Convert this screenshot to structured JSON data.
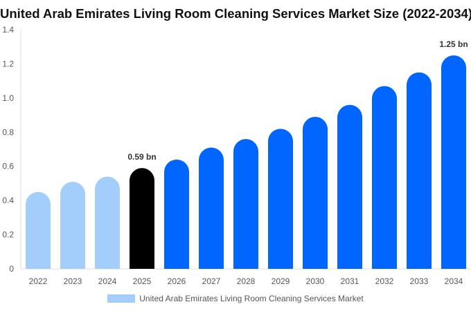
{
  "chart_data": {
    "type": "bar",
    "title": "United Arab Emirates Living Room Cleaning Services Market Size (2022-2034)",
    "categories": [
      "2022",
      "2023",
      "2024",
      "2025",
      "2026",
      "2027",
      "2028",
      "2029",
      "2030",
      "2031",
      "2032",
      "2033",
      "2034"
    ],
    "series": [
      {
        "name": "United Arab Emirates Living Room Cleaning Services Market",
        "values": [
          0.45,
          0.51,
          0.54,
          0.59,
          0.64,
          0.71,
          0.76,
          0.82,
          0.89,
          0.96,
          1.07,
          1.15,
          1.25
        ]
      }
    ],
    "yticks": [
      "0",
      "0.2",
      "0.4",
      "0.6",
      "0.8",
      "1.0",
      "1.2",
      "1.4"
    ],
    "ylim": [
      0,
      1.4
    ],
    "annotations": [
      {
        "category": "2025",
        "text": "0.59 bn"
      },
      {
        "category": "2034",
        "text": "1.25 bn"
      }
    ],
    "colors": {
      "historical": "#a3cdfb",
      "current": "#000000",
      "forecast": "#0066ff"
    },
    "grid": false,
    "legend_position": "bottom"
  }
}
